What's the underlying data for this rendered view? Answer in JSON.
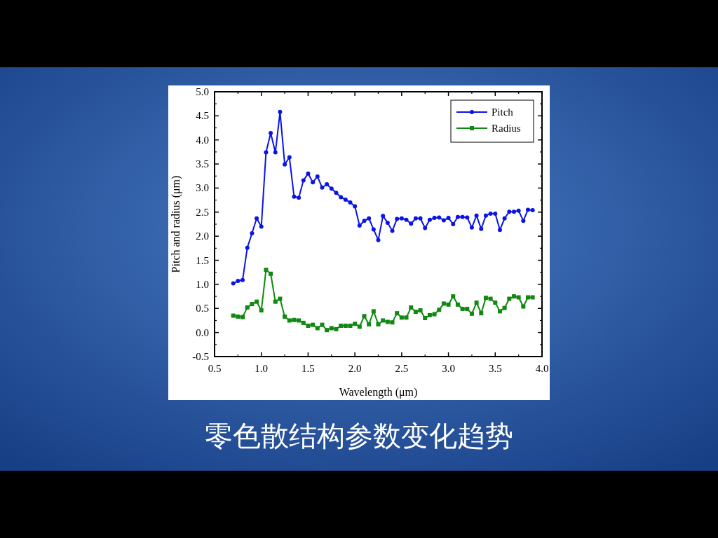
{
  "chart_data": {
    "type": "line",
    "title": "零色散结构参数变化趋势",
    "xlabel": "Wavelength (μm)",
    "ylabel": "Pitch and radius (μm)",
    "x": [
      0.7,
      0.75,
      0.8,
      0.85,
      0.9,
      0.95,
      1.0,
      1.05,
      1.1,
      1.15,
      1.2,
      1.25,
      1.3,
      1.35,
      1.4,
      1.45,
      1.5,
      1.55,
      1.6,
      1.65,
      1.7,
      1.75,
      1.8,
      1.85,
      1.9,
      1.95,
      2.0,
      2.05,
      2.1,
      2.15,
      2.2,
      2.25,
      2.3,
      2.35,
      2.4,
      2.45,
      2.5,
      2.55,
      2.6,
      2.65,
      2.7,
      2.75,
      2.8,
      2.85,
      2.9,
      2.95,
      3.0,
      3.05,
      3.1,
      3.15,
      3.2,
      3.25,
      3.3,
      3.35,
      3.4,
      3.45,
      3.5,
      3.55,
      3.6,
      3.65,
      3.7,
      3.75,
      3.8,
      3.85,
      3.9
    ],
    "series": [
      {
        "name": "Pitch",
        "color": "#0a14e6",
        "marker": "circle",
        "values": [
          1.02,
          1.07,
          1.09,
          1.76,
          2.06,
          2.37,
          2.2,
          3.74,
          4.14,
          3.74,
          4.58,
          3.49,
          3.64,
          2.82,
          2.8,
          3.16,
          3.3,
          3.12,
          3.24,
          3.01,
          3.08,
          2.99,
          2.9,
          2.81,
          2.76,
          2.7,
          2.62,
          2.22,
          2.32,
          2.37,
          2.14,
          1.92,
          2.42,
          2.28,
          2.11,
          2.36,
          2.37,
          2.34,
          2.26,
          2.37,
          2.37,
          2.17,
          2.34,
          2.38,
          2.39,
          2.33,
          2.38,
          2.25,
          2.4,
          2.4,
          2.39,
          2.18,
          2.43,
          2.15,
          2.43,
          2.47,
          2.47,
          2.13,
          2.37,
          2.51,
          2.51,
          2.53,
          2.32,
          2.55,
          2.54
        ]
      },
      {
        "name": "Radius",
        "color": "#118811",
        "marker": "square",
        "values": [
          0.35,
          0.33,
          0.32,
          0.52,
          0.59,
          0.64,
          0.46,
          1.3,
          1.22,
          0.64,
          0.7,
          0.33,
          0.25,
          0.26,
          0.25,
          0.2,
          0.14,
          0.16,
          0.09,
          0.16,
          0.05,
          0.09,
          0.07,
          0.14,
          0.14,
          0.14,
          0.18,
          0.12,
          0.34,
          0.17,
          0.44,
          0.17,
          0.25,
          0.22,
          0.21,
          0.4,
          0.31,
          0.31,
          0.52,
          0.43,
          0.46,
          0.3,
          0.36,
          0.38,
          0.47,
          0.6,
          0.58,
          0.75,
          0.58,
          0.49,
          0.49,
          0.39,
          0.62,
          0.4,
          0.72,
          0.7,
          0.62,
          0.44,
          0.51,
          0.7,
          0.75,
          0.73,
          0.54,
          0.73,
          0.73
        ]
      }
    ],
    "xlim": [
      0.5,
      4.0
    ],
    "ylim": [
      -0.5,
      5.0
    ],
    "xticks": [
      {
        "value": 0.5,
        "label": "0.5"
      },
      {
        "value": 1.0,
        "label": "1.0"
      },
      {
        "value": 1.5,
        "label": "1.5"
      },
      {
        "value": 2.0,
        "label": "2.0"
      },
      {
        "value": 2.5,
        "label": "2.5"
      },
      {
        "value": 3.0,
        "label": "3.0"
      },
      {
        "value": 3.5,
        "label": "3.5"
      },
      {
        "value": 4.0,
        "label": "4.0"
      }
    ],
    "yticks": [
      {
        "value": -0.5,
        "label": "-0.5"
      },
      {
        "value": 0.0,
        "label": "0.0"
      },
      {
        "value": 0.5,
        "label": "0.5"
      },
      {
        "value": 1.0,
        "label": "1.0"
      },
      {
        "value": 1.5,
        "label": "1.5"
      },
      {
        "value": 2.0,
        "label": "2.0"
      },
      {
        "value": 2.5,
        "label": "2.5"
      },
      {
        "value": 3.0,
        "label": "3.0"
      },
      {
        "value": 3.5,
        "label": "3.5"
      },
      {
        "value": 4.0,
        "label": "4.0"
      },
      {
        "value": 4.5,
        "label": "4.5"
      },
      {
        "value": 5.0,
        "label": "5.0"
      }
    ],
    "legend": "top right",
    "grid": false,
    "line_style": "solid"
  }
}
